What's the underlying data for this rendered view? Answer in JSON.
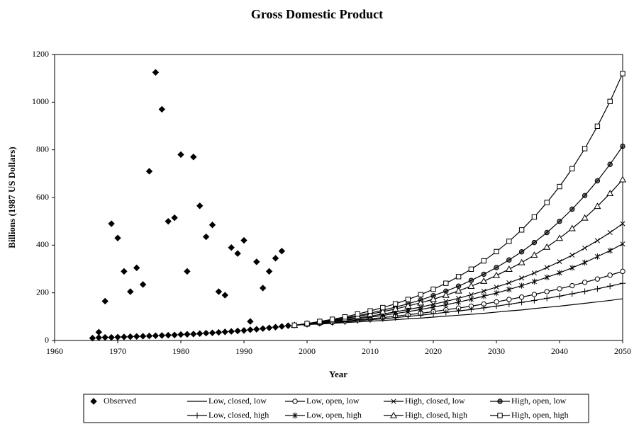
{
  "chart_data": {
    "type": "line",
    "title": "Gross Domestic Product",
    "x_label": "Year",
    "y_label": "Billions (1987 US Dollars)",
    "xlim": [
      1960,
      2050
    ],
    "xticks": [
      1960,
      1970,
      1980,
      1990,
      2000,
      2010,
      2020,
      2030,
      2040,
      2050
    ],
    "ylim": [
      0,
      1200
    ],
    "yticks": [
      0,
      200,
      400,
      600,
      800,
      1000,
      1200
    ],
    "grid": false,
    "legend": "bottom",
    "series": [
      {
        "name": "Observed",
        "color": "#000000",
        "marker": "diamond",
        "line": false,
        "x": [
          1967,
          1968,
          1969,
          1970,
          1971,
          1972,
          1973,
          1974,
          1975,
          1976,
          1977,
          1978,
          1979,
          1980,
          1981,
          1982,
          1983,
          1984,
          1985,
          1986,
          1987,
          1988,
          1989,
          1990,
          1991,
          1992,
          1993,
          1994,
          1995,
          1996,
          1997,
          1966,
          1967,
          1968,
          1969,
          1970,
          1971,
          1972,
          1973,
          1974,
          1975,
          1976,
          1977,
          1978,
          1979,
          1980,
          1981,
          1982,
          1983,
          1984,
          1985,
          1986,
          1987,
          1988,
          1989,
          1990,
          1991,
          1992,
          1993,
          1994,
          1995,
          1996
        ],
        "values": [
          12,
          13,
          13,
          14,
          15,
          16,
          17,
          18,
          19,
          20,
          21,
          22,
          23,
          25,
          26,
          27,
          29,
          31,
          32,
          34,
          36,
          38,
          40,
          42,
          45,
          47,
          50,
          53,
          56,
          59,
          62,
          10,
          35,
          165,
          490,
          430,
          290,
          205,
          305,
          235,
          710,
          1125,
          970,
          500,
          515,
          780,
          290,
          770,
          565,
          435,
          485,
          205,
          190,
          390,
          365,
          420,
          80,
          330,
          220,
          290,
          345,
          375
        ]
      },
      {
        "name": "Low, closed, low",
        "color": "#000000",
        "marker": "none",
        "line": true,
        "x": [
          1998,
          2000,
          2002,
          2004,
          2006,
          2008,
          2010,
          2012,
          2014,
          2016,
          2018,
          2020,
          2022,
          2024,
          2026,
          2028,
          2030,
          2032,
          2034,
          2036,
          2038,
          2040,
          2042,
          2044,
          2046,
          2048,
          2050
        ],
        "values": [
          64,
          67,
          69,
          72,
          75,
          78,
          81,
          84,
          87,
          91,
          94,
          98,
          102,
          106,
          110,
          114,
          119,
          124,
          128,
          134,
          139,
          144,
          150,
          156,
          162,
          168,
          175
        ]
      },
      {
        "name": "Low, open, low",
        "color": "#000000",
        "marker": "circle",
        "line": true,
        "x": [
          1998,
          2000,
          2002,
          2004,
          2006,
          2008,
          2010,
          2012,
          2014,
          2016,
          2018,
          2020,
          2022,
          2024,
          2026,
          2028,
          2030,
          2032,
          2034,
          2036,
          2038,
          2040,
          2042,
          2044,
          2046,
          2048,
          2050
        ],
        "values": [
          64,
          68,
          72,
          76,
          81,
          86,
          91,
          96,
          102,
          108,
          114,
          121,
          129,
          136,
          144,
          153,
          162,
          172,
          182,
          193,
          205,
          217,
          230,
          244,
          258,
          274,
          290
        ]
      },
      {
        "name": "High, closed, low",
        "color": "#000000",
        "marker": "x",
        "line": true,
        "x": [
          1998,
          2000,
          2002,
          2004,
          2006,
          2008,
          2010,
          2012,
          2014,
          2016,
          2018,
          2020,
          2022,
          2024,
          2026,
          2028,
          2030,
          2032,
          2034,
          2036,
          2038,
          2040,
          2042,
          2044,
          2046,
          2048,
          2050
        ],
        "values": [
          64,
          69,
          75,
          81,
          88,
          95,
          102,
          111,
          120,
          130,
          140,
          152,
          164,
          177,
          192,
          207,
          224,
          242,
          262,
          283,
          306,
          331,
          358,
          388,
          419,
          453,
          490
        ]
      },
      {
        "name": "High, open, low",
        "color": "#000000",
        "marker": "dotcircle",
        "line": true,
        "x": [
          1998,
          2000,
          2002,
          2004,
          2006,
          2008,
          2010,
          2012,
          2014,
          2016,
          2018,
          2020,
          2022,
          2024,
          2026,
          2028,
          2030,
          2032,
          2034,
          2036,
          2038,
          2040,
          2042,
          2044,
          2046,
          2048,
          2050
        ],
        "values": [
          64,
          71,
          78,
          86,
          95,
          104,
          115,
          127,
          140,
          154,
          170,
          188,
          207,
          228,
          252,
          278,
          306,
          338,
          372,
          411,
          453,
          500,
          551,
          608,
          670,
          739,
          815
        ]
      },
      {
        "name": "Low, closed, high",
        "color": "#000000",
        "marker": "plus",
        "line": true,
        "x": [
          1998,
          2000,
          2002,
          2004,
          2006,
          2008,
          2010,
          2012,
          2014,
          2016,
          2018,
          2020,
          2022,
          2024,
          2026,
          2028,
          2030,
          2032,
          2034,
          2036,
          2038,
          2040,
          2042,
          2044,
          2046,
          2048,
          2050
        ],
        "values": [
          64,
          67,
          71,
          75,
          78,
          83,
          87,
          91,
          96,
          101,
          106,
          112,
          118,
          124,
          130,
          137,
          144,
          152,
          160,
          168,
          177,
          186,
          196,
          206,
          217,
          228,
          240
        ]
      },
      {
        "name": "Low, open, high",
        "color": "#000000",
        "marker": "star",
        "line": true,
        "x": [
          1998,
          2000,
          2002,
          2004,
          2006,
          2008,
          2010,
          2012,
          2014,
          2016,
          2018,
          2020,
          2022,
          2024,
          2026,
          2028,
          2030,
          2032,
          2034,
          2036,
          2038,
          2040,
          2042,
          2044,
          2046,
          2048,
          2050
        ],
        "values": [
          64,
          69,
          74,
          79,
          85,
          91,
          98,
          105,
          113,
          121,
          130,
          140,
          150,
          161,
          173,
          186,
          199,
          214,
          230,
          247,
          265,
          284,
          305,
          327,
          352,
          377,
          405
        ]
      },
      {
        "name": "High, closed, high",
        "color": "#000000",
        "marker": "triangle",
        "line": true,
        "x": [
          1998,
          2000,
          2002,
          2004,
          2006,
          2008,
          2010,
          2012,
          2014,
          2016,
          2018,
          2020,
          2022,
          2024,
          2026,
          2028,
          2030,
          2032,
          2034,
          2036,
          2038,
          2040,
          2042,
          2044,
          2046,
          2048,
          2050
        ],
        "values": [
          64,
          70,
          77,
          84,
          92,
          101,
          110,
          121,
          132,
          145,
          158,
          173,
          190,
          208,
          228,
          249,
          273,
          299,
          327,
          358,
          392,
          429,
          470,
          514,
          563,
          617,
          675
        ]
      },
      {
        "name": "High, open, high",
        "color": "#000000",
        "marker": "square",
        "line": true,
        "x": [
          1998,
          2000,
          2002,
          2004,
          2006,
          2008,
          2010,
          2012,
          2014,
          2016,
          2018,
          2020,
          2022,
          2024,
          2026,
          2028,
          2030,
          2032,
          2034,
          2036,
          2038,
          2040,
          2042,
          2044,
          2046,
          2048,
          2050
        ],
        "values": [
          64,
          71,
          80,
          89,
          99,
          111,
          124,
          138,
          154,
          172,
          192,
          215,
          240,
          268,
          299,
          334,
          373,
          416,
          464,
          518,
          579,
          646,
          721,
          805,
          899,
          1003,
          1120
        ]
      }
    ]
  }
}
